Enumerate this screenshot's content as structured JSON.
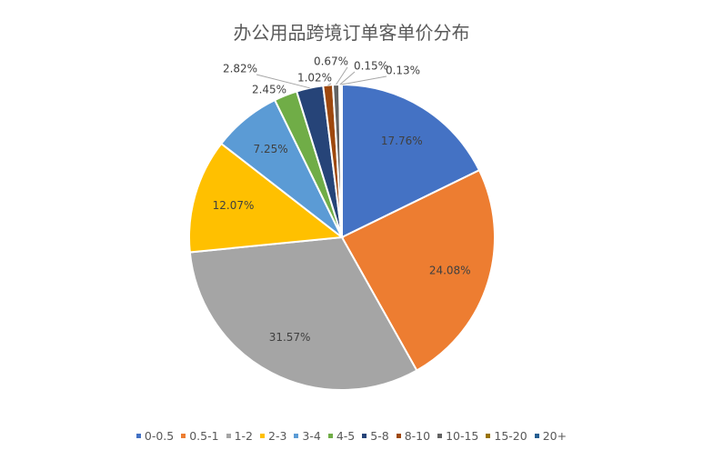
{
  "chart_data": {
    "type": "pie",
    "title": "办公用品跨境订单客单价分布",
    "categories": [
      "0-0.5",
      "0.5-1",
      "1-2",
      "2-3",
      "3-4",
      "4-5",
      "5-8",
      "8-10",
      "10-15",
      "15-20",
      "20+"
    ],
    "values": [
      17.76,
      24.08,
      31.57,
      12.07,
      7.25,
      2.45,
      2.82,
      1.02,
      0.67,
      0.15,
      0.13
    ],
    "labels": [
      "17.76%",
      "24.08%",
      "31.57%",
      "12.07%",
      "7.25%",
      "2.45%",
      "2.82%",
      "1.02%",
      "0.67%",
      "0.15%",
      "0.13%"
    ],
    "colors": [
      "#4472C4",
      "#ED7D31",
      "#A5A5A5",
      "#FFC000",
      "#5B9BD5",
      "#70AD47",
      "#264478",
      "#9E480E",
      "#636363",
      "#997300",
      "#255E91"
    ],
    "legend_position": "bottom",
    "start_angle": "top",
    "direction": "clockwise"
  }
}
